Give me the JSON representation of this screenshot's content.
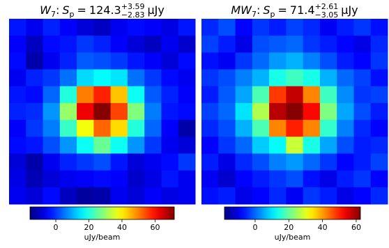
{
  "chart_data": [
    {
      "type": "heatmap",
      "colormap": "jet",
      "title": {
        "name": "W",
        "name_sub": "7",
        "colon": ":",
        "flux_symbol": "S",
        "flux_sub": "p",
        "equals": "=",
        "value": "124.3",
        "upper": "+3.59",
        "lower": "−2.83",
        "unit": "μJy"
      },
      "clim": [
        -15.6,
        71.6
      ],
      "cticks": [
        0,
        20,
        40,
        60
      ],
      "colorbar_label": "uJy/beam",
      "z": [
        [
          -3,
          -6,
          -2,
          -5,
          -8,
          -10,
          -6,
          -4,
          -5,
          -7,
          -3
        ],
        [
          -5,
          -10,
          -4,
          -3,
          0,
          -2,
          -5,
          -8,
          -10,
          -6,
          -9
        ],
        [
          -4,
          -12,
          -6,
          -2,
          3,
          2,
          0,
          -3,
          -5,
          -8,
          -4
        ],
        [
          -6,
          -2,
          0,
          5,
          14,
          17,
          15,
          5,
          0,
          -4,
          -6
        ],
        [
          -3,
          -4,
          4,
          20,
          50,
          58,
          44,
          18,
          3,
          -2,
          -5
        ],
        [
          -2,
          -1,
          8,
          30,
          62,
          71,
          55,
          28,
          6,
          -3,
          -4
        ],
        [
          -5,
          0,
          6,
          22,
          38,
          52,
          42,
          20,
          4,
          -5,
          -12
        ],
        [
          -4,
          -3,
          2,
          8,
          18,
          26,
          18,
          8,
          0,
          -6,
          -8
        ],
        [
          -8,
          -12,
          -6,
          -2,
          0,
          2,
          -3,
          -8,
          -6,
          -4,
          0
        ],
        [
          -7,
          -11,
          -8,
          -6,
          -5,
          -4,
          -5,
          -9,
          -7,
          -3,
          -6
        ],
        [
          -6,
          -8,
          -4,
          -10,
          -13,
          -12,
          -6,
          -8,
          -5,
          -7,
          -6
        ]
      ]
    },
    {
      "type": "heatmap",
      "colormap": "jet",
      "title": {
        "name": "MW",
        "name_sub": "7",
        "colon": ":",
        "flux_symbol": "S",
        "flux_sub": "p",
        "equals": "=",
        "value": "71.4",
        "upper": "+2.61",
        "lower": "−3.05",
        "unit": "μJy"
      },
      "clim": [
        -18.2,
        62.5
      ],
      "cticks": [
        0,
        20,
        40,
        60
      ],
      "colorbar_label": "uJy/beam",
      "z": [
        [
          -5,
          -2,
          -8,
          -4,
          -6,
          -3,
          -5,
          -9,
          -6,
          -4,
          -7
        ],
        [
          -3,
          -6,
          -10,
          -2,
          -1,
          0,
          -4,
          -6,
          -8,
          -10,
          -5
        ],
        [
          -7,
          -9,
          -4,
          0,
          4,
          6,
          2,
          -2,
          -6,
          -8,
          -4
        ],
        [
          -4,
          -2,
          2,
          6,
          14,
          17,
          14,
          6,
          0,
          -3,
          -7
        ],
        [
          -6,
          -1,
          5,
          18,
          48,
          57,
          42,
          17,
          3,
          -4,
          -3
        ],
        [
          -3,
          0,
          10,
          26,
          58,
          62,
          52,
          22,
          5,
          -2,
          -6
        ],
        [
          -5,
          -2,
          6,
          18,
          42,
          50,
          42,
          16,
          2,
          -5,
          -8
        ],
        [
          -8,
          -4,
          0,
          8,
          12,
          28,
          14,
          5,
          -2,
          -6,
          -5
        ],
        [
          -6,
          -10,
          -5,
          -2,
          2,
          4,
          0,
          -4,
          -8,
          -6,
          -3
        ],
        [
          -9,
          -12,
          -8,
          -6,
          -4,
          -2,
          -7,
          -10,
          -6,
          -4,
          -8
        ],
        [
          -7,
          -6,
          -10,
          -8,
          -5,
          -9,
          -4,
          -6,
          -10,
          -8,
          -5
        ]
      ]
    }
  ]
}
